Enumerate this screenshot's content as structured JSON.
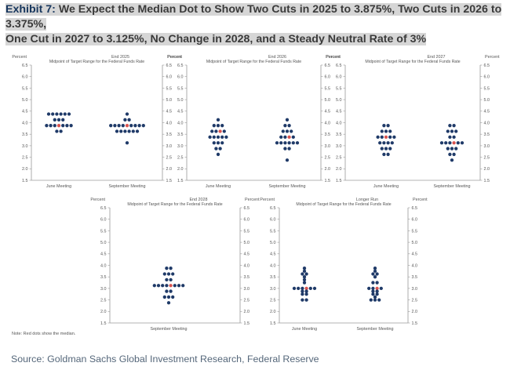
{
  "header": {
    "label": "Exhibit 7:",
    "line1": "We Expect the Median Dot to Show Two Cuts in 2025 to 3.875%, Two Cuts in 2026 to 3.375%,",
    "line2": "One Cut in 2027 to 3.125%, No Change in 2028, and a Steady Neutral Rate of 3%"
  },
  "note": "Note: Red dots show the median.",
  "source": "Source: Goldman Sachs Global Investment Research, Federal Reserve",
  "colors": {
    "dot": "#1f3a68",
    "median_dot": "#d9534f",
    "axis": "#9a9a9a",
    "text": "#555555"
  },
  "chart_data": [
    {
      "type": "scatter",
      "title": "End 2025",
      "subtitle": "Midpoint of Target Range for the Federal Funds Rate",
      "ylabel_left": "Percent",
      "ylabel_right": "Percent",
      "ylim": [
        1.5,
        6.5
      ],
      "yticks": [
        "1.5",
        "2.0",
        "2.5",
        "3.0",
        "3.5",
        "4.0",
        "4.5",
        "5.0",
        "5.5",
        "6.0",
        "6.5"
      ],
      "categories": [
        "June Meeting",
        "September Meeting"
      ],
      "series": [
        {
          "category": "June Meeting",
          "points": [
            {
              "y": 4.375,
              "n": 6
            },
            {
              "y": 4.125,
              "n": 3
            },
            {
              "y": 3.875,
              "n": 7,
              "median": true
            },
            {
              "y": 3.625,
              "n": 2
            }
          ]
        },
        {
          "category": "September Meeting",
          "points": [
            {
              "y": 4.375,
              "n": 1
            },
            {
              "y": 4.125,
              "n": 2
            },
            {
              "y": 3.875,
              "n": 9,
              "median": true
            },
            {
              "y": 3.625,
              "n": 6
            },
            {
              "y": 3.125,
              "n": 1
            }
          ]
        }
      ]
    },
    {
      "type": "scatter",
      "title": "End 2026",
      "subtitle": "Midpoint of Target Range for the Federal Funds Rate",
      "ylabel_left": "Percent",
      "ylabel_right": "Percent",
      "ylim": [
        1.5,
        6.5
      ],
      "yticks": [
        "1.5",
        "2.0",
        "2.5",
        "3.0",
        "3.5",
        "4.0",
        "4.5",
        "5.0",
        "5.5",
        "6.0",
        "6.5"
      ],
      "categories": [
        "June Meeting",
        "September Meeting"
      ],
      "series": [
        {
          "category": "June Meeting",
          "points": [
            {
              "y": 4.125,
              "n": 1
            },
            {
              "y": 3.875,
              "n": 3
            },
            {
              "y": 3.625,
              "n": 4,
              "median": true
            },
            {
              "y": 3.375,
              "n": 5
            },
            {
              "y": 3.125,
              "n": 3
            },
            {
              "y": 2.875,
              "n": 2
            },
            {
              "y": 2.625,
              "n": 1
            }
          ]
        },
        {
          "category": "September Meeting",
          "points": [
            {
              "y": 4.125,
              "n": 1
            },
            {
              "y": 3.875,
              "n": 2
            },
            {
              "y": 3.625,
              "n": 3
            },
            {
              "y": 3.375,
              "n": 4,
              "median": true
            },
            {
              "y": 3.125,
              "n": 6
            },
            {
              "y": 2.875,
              "n": 2
            },
            {
              "y": 2.375,
              "n": 1
            }
          ]
        }
      ]
    },
    {
      "type": "scatter",
      "title": "End 2027",
      "subtitle": "Midpoint of Target Range for the Federal Funds Rate",
      "ylabel_left": "Percent",
      "ylabel_right": "Percent",
      "ylim": [
        1.5,
        6.5
      ],
      "yticks": [
        "1.5",
        "2.0",
        "2.5",
        "3.0",
        "3.5",
        "4.0",
        "4.5",
        "5.0",
        "5.5",
        "6.0",
        "6.5"
      ],
      "categories": [
        "June Meeting",
        "September Meeting"
      ],
      "series": [
        {
          "category": "June Meeting",
          "points": [
            {
              "y": 3.875,
              "n": 2
            },
            {
              "y": 3.625,
              "n": 3
            },
            {
              "y": 3.375,
              "n": 5,
              "median": true
            },
            {
              "y": 3.125,
              "n": 4
            },
            {
              "y": 2.875,
              "n": 3
            },
            {
              "y": 2.625,
              "n": 2
            }
          ]
        },
        {
          "category": "September Meeting",
          "points": [
            {
              "y": 3.875,
              "n": 2
            },
            {
              "y": 3.625,
              "n": 3
            },
            {
              "y": 3.375,
              "n": 2
            },
            {
              "y": 3.125,
              "n": 6,
              "median": true
            },
            {
              "y": 2.875,
              "n": 3
            },
            {
              "y": 2.625,
              "n": 2
            },
            {
              "y": 2.375,
              "n": 1
            }
          ]
        }
      ]
    },
    {
      "type": "scatter",
      "title": "End 2028",
      "subtitle": "Midpoint of Target Range for the Federal Funds Rate",
      "ylabel_left": "Percent",
      "ylabel_right": "Percent",
      "ylim": [
        1.5,
        6.5
      ],
      "yticks": [
        "1.5",
        "2.0",
        "2.5",
        "3.0",
        "3.5",
        "4.0",
        "4.5",
        "5.0",
        "5.5",
        "6.0",
        "6.5"
      ],
      "categories": [
        "September Meeting"
      ],
      "series": [
        {
          "category": "September Meeting",
          "points": [
            {
              "y": 3.875,
              "n": 2
            },
            {
              "y": 3.625,
              "n": 3
            },
            {
              "y": 3.375,
              "n": 2
            },
            {
              "y": 3.125,
              "n": 8,
              "median": true
            },
            {
              "y": 2.875,
              "n": 2
            },
            {
              "y": 2.625,
              "n": 3
            },
            {
              "y": 2.375,
              "n": 1
            }
          ]
        }
      ]
    },
    {
      "type": "scatter",
      "title": "Longer Run",
      "subtitle": "Midpoint of Target Range for the Federal Funds Rate",
      "ylabel_left": "Percent",
      "ylabel_right": "Percent",
      "ylim": [
        1.5,
        6.5
      ],
      "yticks": [
        "1.5",
        "2.0",
        "2.5",
        "3.0",
        "3.5",
        "4.0",
        "4.5",
        "5.0",
        "5.5",
        "6.0",
        "6.5"
      ],
      "categories": [
        "June Meeting",
        "September Meeting"
      ],
      "series": [
        {
          "category": "June Meeting",
          "points": [
            {
              "y": 3.875,
              "n": 1
            },
            {
              "y": 3.75,
              "n": 1
            },
            {
              "y": 3.625,
              "n": 2
            },
            {
              "y": 3.5,
              "n": 1
            },
            {
              "y": 3.375,
              "n": 1
            },
            {
              "y": 3.25,
              "n": 1
            },
            {
              "y": 3.0,
              "n": 6,
              "median": true
            },
            {
              "y": 2.875,
              "n": 2
            },
            {
              "y": 2.75,
              "n": 2
            },
            {
              "y": 2.5,
              "n": 2
            }
          ]
        },
        {
          "category": "September Meeting",
          "points": [
            {
              "y": 3.875,
              "n": 1
            },
            {
              "y": 3.75,
              "n": 1
            },
            {
              "y": 3.625,
              "n": 2
            },
            {
              "y": 3.5,
              "n": 1
            },
            {
              "y": 3.25,
              "n": 2
            },
            {
              "y": 3.0,
              "n": 4,
              "median": true
            },
            {
              "y": 2.875,
              "n": 2
            },
            {
              "y": 2.75,
              "n": 2
            },
            {
              "y": 2.625,
              "n": 1
            },
            {
              "y": 2.5,
              "n": 3
            }
          ]
        }
      ]
    }
  ]
}
